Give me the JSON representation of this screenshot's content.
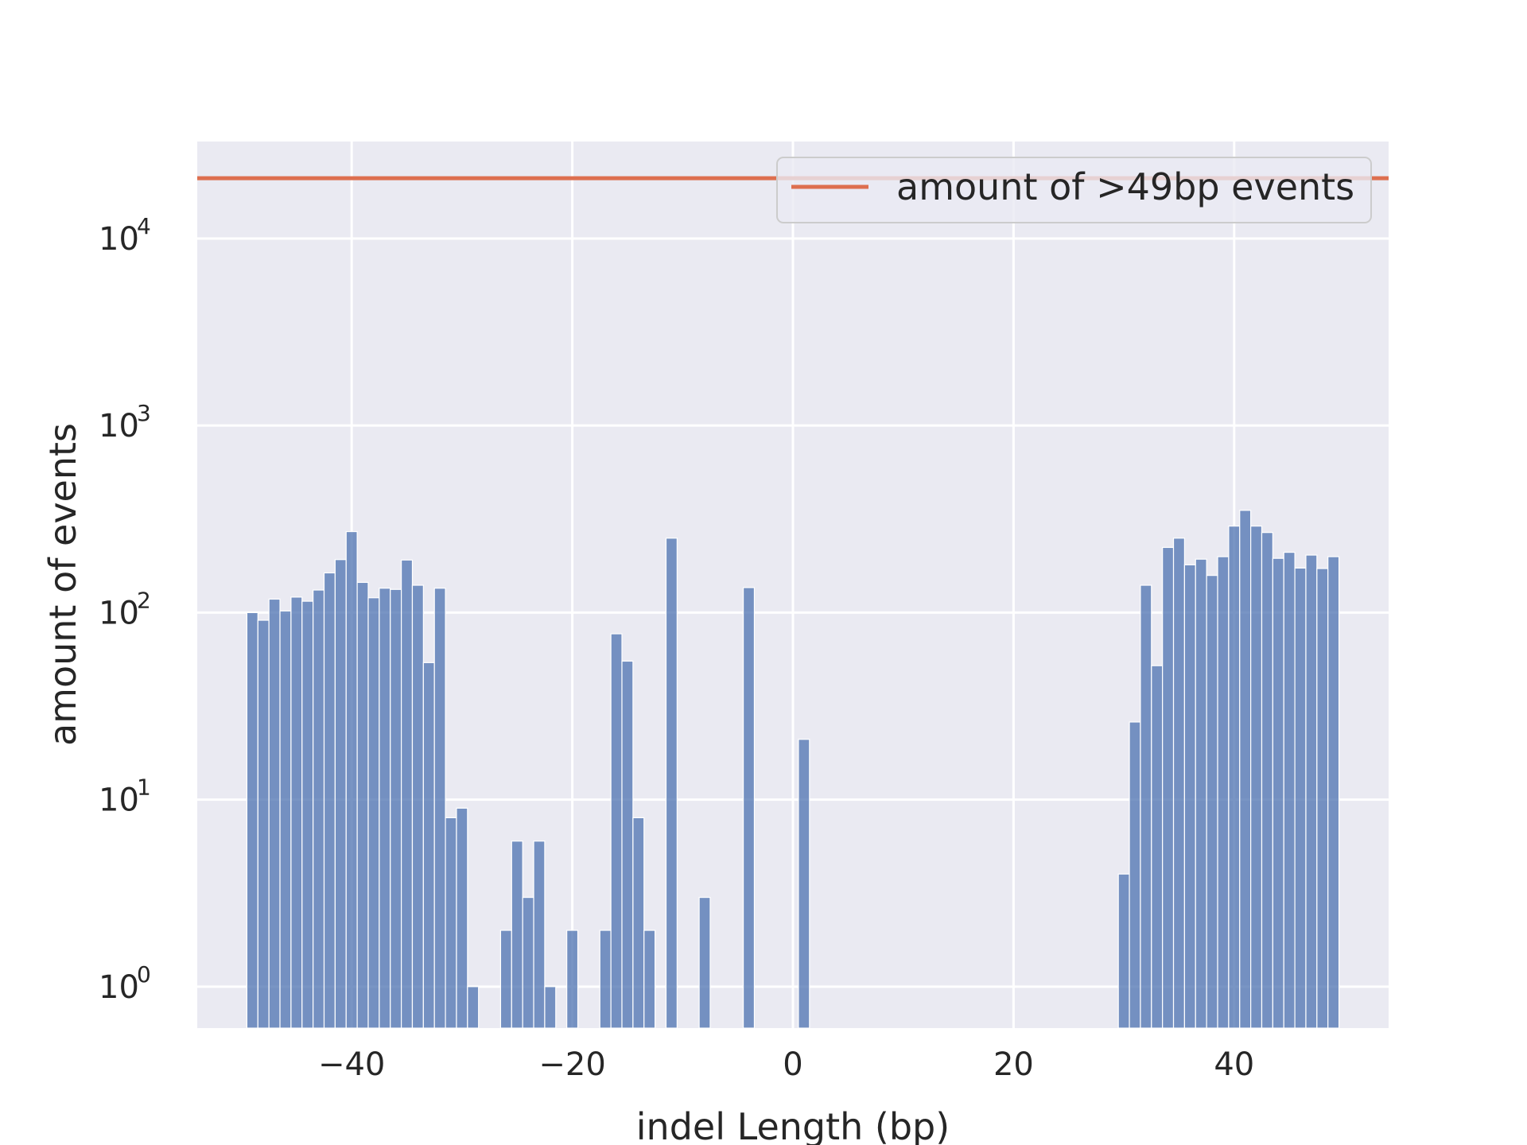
{
  "chart_data": {
    "type": "bar",
    "xlabel": "indel Length (bp)",
    "ylabel": "amount of events",
    "yscale": "log",
    "xlim": [
      -54,
      54
    ],
    "ylim": [
      0.6,
      33000
    ],
    "grid": true,
    "legend_position": "top-right",
    "xticks": [
      {
        "value": -40,
        "label": "−40"
      },
      {
        "value": -20,
        "label": "−20"
      },
      {
        "value": 0,
        "label": "0"
      },
      {
        "value": 20,
        "label": "20"
      },
      {
        "value": 40,
        "label": "40"
      }
    ],
    "yticks": [
      {
        "value": 1,
        "base": "10",
        "exp": "0"
      },
      {
        "value": 10,
        "base": "10",
        "exp": "1"
      },
      {
        "value": 100,
        "base": "10",
        "exp": "2"
      },
      {
        "value": 1000,
        "base": "10",
        "exp": "3"
      },
      {
        "value": 10000,
        "base": "10",
        "exp": "4"
      }
    ],
    "bin_width": 1,
    "series": [
      {
        "kind": "histogram",
        "color": "#4c72b0",
        "bins": [
          {
            "x": -49,
            "y": 100
          },
          {
            "x": -48,
            "y": 91
          },
          {
            "x": -47,
            "y": 118
          },
          {
            "x": -46,
            "y": 102
          },
          {
            "x": -45,
            "y": 121
          },
          {
            "x": -44,
            "y": 115
          },
          {
            "x": -43,
            "y": 132
          },
          {
            "x": -42,
            "y": 163
          },
          {
            "x": -41,
            "y": 192
          },
          {
            "x": -40,
            "y": 271
          },
          {
            "x": -39,
            "y": 145
          },
          {
            "x": -38,
            "y": 120
          },
          {
            "x": -37,
            "y": 135
          },
          {
            "x": -36,
            "y": 133
          },
          {
            "x": -35,
            "y": 191
          },
          {
            "x": -34,
            "y": 140
          },
          {
            "x": -33,
            "y": 54
          },
          {
            "x": -32,
            "y": 135
          },
          {
            "x": -31,
            "y": 8
          },
          {
            "x": -30,
            "y": 9
          },
          {
            "x": -29,
            "y": 1
          },
          {
            "x": -26,
            "y": 2
          },
          {
            "x": -25,
            "y": 6
          },
          {
            "x": -24,
            "y": 3
          },
          {
            "x": -23,
            "y": 6
          },
          {
            "x": -22,
            "y": 1
          },
          {
            "x": -20,
            "y": 2
          },
          {
            "x": -17,
            "y": 2
          },
          {
            "x": -16,
            "y": 77
          },
          {
            "x": -15,
            "y": 55
          },
          {
            "x": -14,
            "y": 8
          },
          {
            "x": -13,
            "y": 2
          },
          {
            "x": -11,
            "y": 250
          },
          {
            "x": -8,
            "y": 3
          },
          {
            "x": -4,
            "y": 136
          },
          {
            "x": 1,
            "y": 21
          },
          {
            "x": 30,
            "y": 4
          },
          {
            "x": 31,
            "y": 26
          },
          {
            "x": 32,
            "y": 140
          },
          {
            "x": 33,
            "y": 52
          },
          {
            "x": 34,
            "y": 223
          },
          {
            "x": 35,
            "y": 250
          },
          {
            "x": 36,
            "y": 180
          },
          {
            "x": 37,
            "y": 193
          },
          {
            "x": 38,
            "y": 158
          },
          {
            "x": 39,
            "y": 199
          },
          {
            "x": 40,
            "y": 290
          },
          {
            "x": 41,
            "y": 352
          },
          {
            "x": 42,
            "y": 290
          },
          {
            "x": 43,
            "y": 268
          },
          {
            "x": 44,
            "y": 195
          },
          {
            "x": 45,
            "y": 210
          },
          {
            "x": 46,
            "y": 173
          },
          {
            "x": 47,
            "y": 203
          },
          {
            "x": 48,
            "y": 172
          },
          {
            "x": 49,
            "y": 199
          }
        ]
      },
      {
        "kind": "hline",
        "name": "amount of >49bp events",
        "color": "#dd6f4f",
        "value": 21000
      }
    ]
  }
}
